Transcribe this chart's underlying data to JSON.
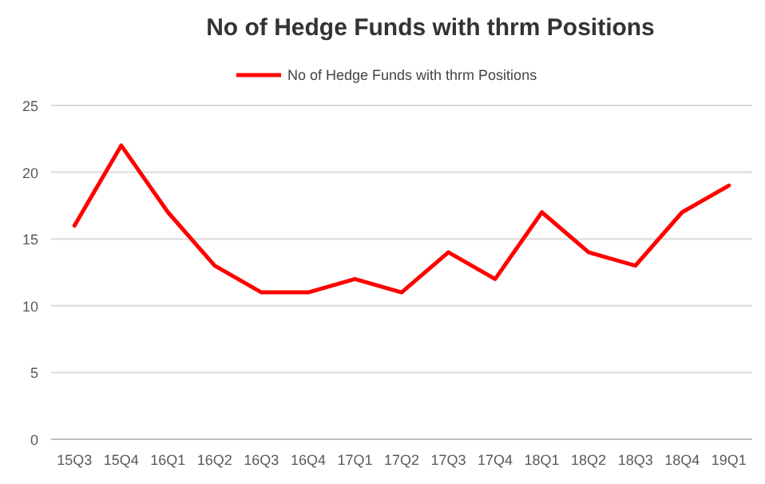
{
  "chart_data": {
    "type": "line",
    "title": "No of Hedge Funds with thrm Positions",
    "categories": [
      "15Q3",
      "15Q4",
      "16Q1",
      "16Q2",
      "16Q3",
      "16Q4",
      "17Q1",
      "17Q2",
      "17Q3",
      "17Q4",
      "18Q1",
      "18Q2",
      "18Q3",
      "18Q4",
      "19Q1"
    ],
    "series": [
      {
        "name": "No of Hedge Funds with thrm Positions",
        "color": "#ff0000",
        "values": [
          16,
          22,
          17,
          13,
          11,
          11,
          12,
          11,
          14,
          12,
          17,
          14,
          13,
          17,
          19
        ]
      }
    ],
    "ylim": [
      0,
      25
    ],
    "yticks": [
      0,
      5,
      10,
      15,
      20,
      25
    ],
    "grid": "y",
    "legend": "top",
    "marker": "none"
  }
}
